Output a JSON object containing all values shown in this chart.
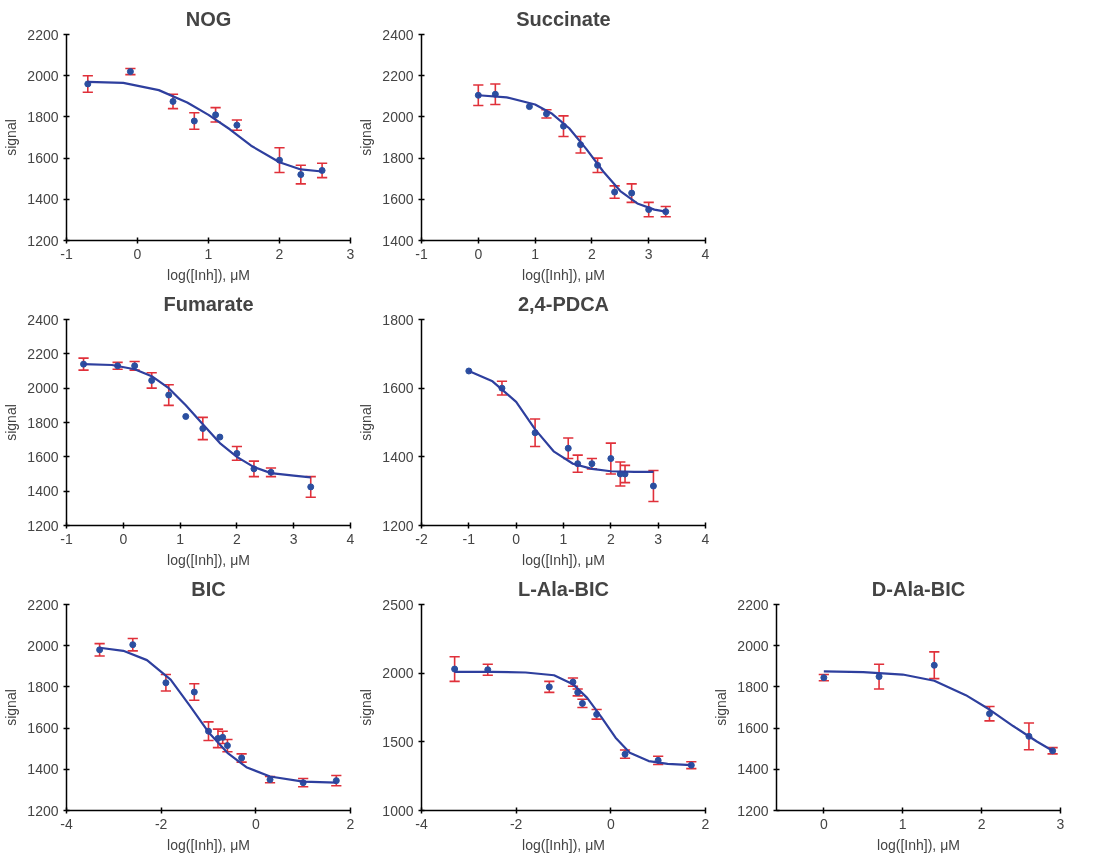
{
  "chart_data": [
    {
      "type": "scatter",
      "title": "NOG",
      "xlabel": "log([Inh]), μM",
      "ylabel": "signal",
      "xlim": [
        -1,
        3
      ],
      "xticks": [
        -1,
        0,
        1,
        2,
        3
      ],
      "ylim": [
        1200,
        2200
      ],
      "yticks": [
        1200,
        1400,
        1600,
        1800,
        2000,
        2200
      ],
      "grid": false,
      "series": [
        {
          "marker": "circle",
          "color": "#2b4fa0",
          "x": [
            -0.7,
            -0.1,
            0.5,
            0.8,
            1.1,
            1.4,
            2.0,
            2.3,
            2.6
          ],
          "values": [
            1960,
            2020,
            1875,
            1780,
            1810,
            1760,
            1590,
            1520,
            1540
          ],
          "errors": [
            40,
            15,
            35,
            40,
            35,
            25,
            60,
            45,
            35
          ]
        },
        {
          "type": "line",
          "marker": "none",
          "color": "#2e3f9e",
          "x": [
            -0.7,
            -0.2,
            0.3,
            0.7,
            1.0,
            1.3,
            1.6,
            2.0,
            2.3,
            2.6
          ],
          "values": [
            1970,
            1965,
            1930,
            1870,
            1810,
            1740,
            1660,
            1580,
            1545,
            1535
          ]
        }
      ]
    },
    {
      "type": "scatter",
      "title": "Succinate",
      "xlabel": "log([Inh]), μM",
      "ylabel": "signal",
      "xlim": [
        -1,
        4
      ],
      "xticks": [
        -1,
        0,
        1,
        2,
        3,
        4
      ],
      "ylim": [
        1400,
        2400
      ],
      "yticks": [
        1400,
        1600,
        1800,
        2000,
        2200,
        2400
      ],
      "grid": false,
      "series": [
        {
          "marker": "circle",
          "color": "#2b4fa0",
          "x": [
            0,
            0.3,
            0.9,
            1.2,
            1.5,
            1.8,
            2.1,
            2.4,
            2.7,
            3.0,
            3.3
          ],
          "values": [
            2105,
            2110,
            2050,
            2015,
            1955,
            1865,
            1765,
            1635,
            1630,
            1550,
            1540
          ],
          "errors": [
            50,
            50,
            null,
            20,
            50,
            40,
            35,
            30,
            45,
            35,
            25
          ]
        },
        {
          "type": "line",
          "marker": "none",
          "color": "#2e3f9e",
          "x": [
            0,
            0.5,
            1.0,
            1.3,
            1.6,
            1.9,
            2.2,
            2.5,
            2.8,
            3.1,
            3.3
          ],
          "values": [
            2105,
            2095,
            2060,
            2015,
            1945,
            1845,
            1735,
            1640,
            1580,
            1550,
            1540
          ]
        }
      ]
    },
    {
      "type": "scatter",
      "title": "Fumarate",
      "xlabel": "log([Inh]), μM",
      "ylabel": "signal",
      "xlim": [
        -1,
        4
      ],
      "xticks": [
        -1,
        0,
        1,
        2,
        3,
        4
      ],
      "ylim": [
        1200,
        2400
      ],
      "yticks": [
        1200,
        1400,
        1600,
        1800,
        2000,
        2200,
        2400
      ],
      "grid": false,
      "series": [
        {
          "marker": "circle",
          "color": "#2b4fa0",
          "x": [
            -0.7,
            -0.1,
            0.2,
            0.5,
            0.8,
            1.1,
            1.4,
            1.7,
            2.0,
            2.3,
            2.6,
            3.3
          ],
          "values": [
            2140,
            2130,
            2130,
            2045,
            1960,
            1835,
            1765,
            1715,
            1620,
            1530,
            1510,
            1425
          ],
          "errors": [
            35,
            20,
            25,
            45,
            60,
            null,
            65,
            null,
            40,
            45,
            25,
            60
          ]
        },
        {
          "type": "line",
          "marker": "none",
          "color": "#2e3f9e",
          "x": [
            -0.7,
            -0.2,
            0.2,
            0.5,
            0.8,
            1.1,
            1.4,
            1.7,
            2.0,
            2.3,
            2.6,
            3.0,
            3.3
          ],
          "values": [
            2140,
            2135,
            2110,
            2070,
            2000,
            1900,
            1790,
            1680,
            1600,
            1540,
            1505,
            1490,
            1480
          ]
        }
      ]
    },
    {
      "type": "scatter",
      "title": "2,4-PDCA",
      "xlabel": "log([Inh]), μM",
      "ylabel": "signal",
      "xlim": [
        -2,
        4
      ],
      "xticks": [
        -2,
        -1,
        0,
        1,
        2,
        3,
        4
      ],
      "ylim": [
        1200,
        1800
      ],
      "yticks": [
        1200,
        1400,
        1600,
        1800
      ],
      "grid": false,
      "series": [
        {
          "marker": "circle",
          "color": "#2b4fa0",
          "x": [
            -1,
            -0.3,
            0.4,
            1.1,
            1.3,
            1.6,
            2.0,
            2.2,
            2.3,
            2.9
          ],
          "values": [
            1650,
            1600,
            1470,
            1425,
            1380,
            1380,
            1395,
            1350,
            1350,
            1315
          ],
          "errors": [
            null,
            20,
            40,
            30,
            25,
            15,
            45,
            35,
            25,
            45
          ]
        },
        {
          "type": "line",
          "marker": "none",
          "color": "#2e3f9e",
          "x": [
            -1,
            -0.5,
            0,
            0.4,
            0.8,
            1.2,
            1.6,
            2.0,
            2.5,
            2.9
          ],
          "values": [
            1650,
            1620,
            1560,
            1480,
            1415,
            1380,
            1365,
            1358,
            1356,
            1356
          ]
        }
      ]
    },
    {
      "type": "scatter",
      "title": "BIC",
      "xlabel": "log([Inh]), μM",
      "ylabel": "signal",
      "xlim": [
        -4,
        2
      ],
      "xticks": [
        -4,
        -2,
        0,
        2
      ],
      "ylim": [
        1200,
        2200
      ],
      "yticks": [
        1200,
        1400,
        1600,
        1800,
        2000,
        2200
      ],
      "grid": false,
      "series": [
        {
          "marker": "circle",
          "color": "#2b4fa0",
          "x": [
            -3.3,
            -2.6,
            -1.9,
            -1.3,
            -1.0,
            -0.8,
            -0.7,
            -0.6,
            -0.3,
            0.3,
            1.0,
            1.7
          ],
          "values": [
            1980,
            2005,
            1820,
            1775,
            1585,
            1550,
            1555,
            1515,
            1455,
            1350,
            1335,
            1345
          ],
          "errors": [
            30,
            30,
            40,
            40,
            45,
            45,
            30,
            30,
            20,
            15,
            20,
            25
          ]
        },
        {
          "type": "line",
          "marker": "none",
          "color": "#2e3f9e",
          "x": [
            -3.3,
            -2.8,
            -2.3,
            -1.8,
            -1.4,
            -1.0,
            -0.6,
            -0.2,
            0.3,
            1.0,
            1.7
          ],
          "values": [
            1990,
            1975,
            1930,
            1835,
            1710,
            1580,
            1480,
            1410,
            1365,
            1340,
            1335
          ]
        }
      ]
    },
    {
      "type": "scatter",
      "title": "L-Ala-BIC",
      "xlabel": "log([Inh]), μM",
      "ylabel": "signal",
      "xlim": [
        -4,
        2
      ],
      "xticks": [
        -4,
        -2,
        0,
        2
      ],
      "ylim": [
        1000,
        2500
      ],
      "yticks": [
        1000,
        1500,
        2000,
        2500
      ],
      "grid": false,
      "series": [
        {
          "marker": "circle",
          "color": "#2b4fa0",
          "x": [
            -3.3,
            -2.6,
            -1.3,
            -0.8,
            -0.7,
            -0.6,
            -0.3,
            0.3,
            1.0,
            1.7
          ],
          "values": [
            2030,
            2025,
            1900,
            1935,
            1860,
            1780,
            1700,
            1410,
            1365,
            1330
          ],
          "errors": [
            90,
            40,
            40,
            30,
            25,
            30,
            35,
            30,
            30,
            25
          ]
        },
        {
          "type": "line",
          "marker": "none",
          "color": "#2e3f9e",
          "x": [
            -3.3,
            -2.5,
            -1.8,
            -1.2,
            -0.8,
            -0.5,
            -0.2,
            0.1,
            0.4,
            0.8,
            1.2,
            1.7
          ],
          "values": [
            2010,
            2010,
            2005,
            1985,
            1920,
            1820,
            1680,
            1530,
            1420,
            1360,
            1340,
            1330
          ]
        }
      ]
    },
    {
      "type": "scatter",
      "title": "D-Ala-BIC",
      "xlabel": "log([Inh]), μM",
      "ylabel": "signal",
      "xlim": [
        -0.6,
        3
      ],
      "xticks": [
        0,
        1,
        2,
        3
      ],
      "ylim": [
        1200,
        2200
      ],
      "yticks": [
        1200,
        1400,
        1600,
        1800,
        2000,
        2200
      ],
      "grid": false,
      "series": [
        {
          "marker": "circle",
          "color": "#2b4fa0",
          "x": [
            0,
            0.7,
            1.4,
            2.1,
            2.6,
            2.9
          ],
          "values": [
            1845,
            1850,
            1905,
            1670,
            1560,
            1490
          ],
          "errors": [
            15,
            60,
            65,
            35,
            65,
            15
          ]
        },
        {
          "type": "line",
          "marker": "none",
          "color": "#2e3f9e",
          "x": [
            0,
            0.5,
            1.0,
            1.4,
            1.8,
            2.1,
            2.4,
            2.7,
            2.9
          ],
          "values": [
            1875,
            1872,
            1860,
            1830,
            1760,
            1690,
            1610,
            1535,
            1490
          ]
        }
      ]
    }
  ]
}
